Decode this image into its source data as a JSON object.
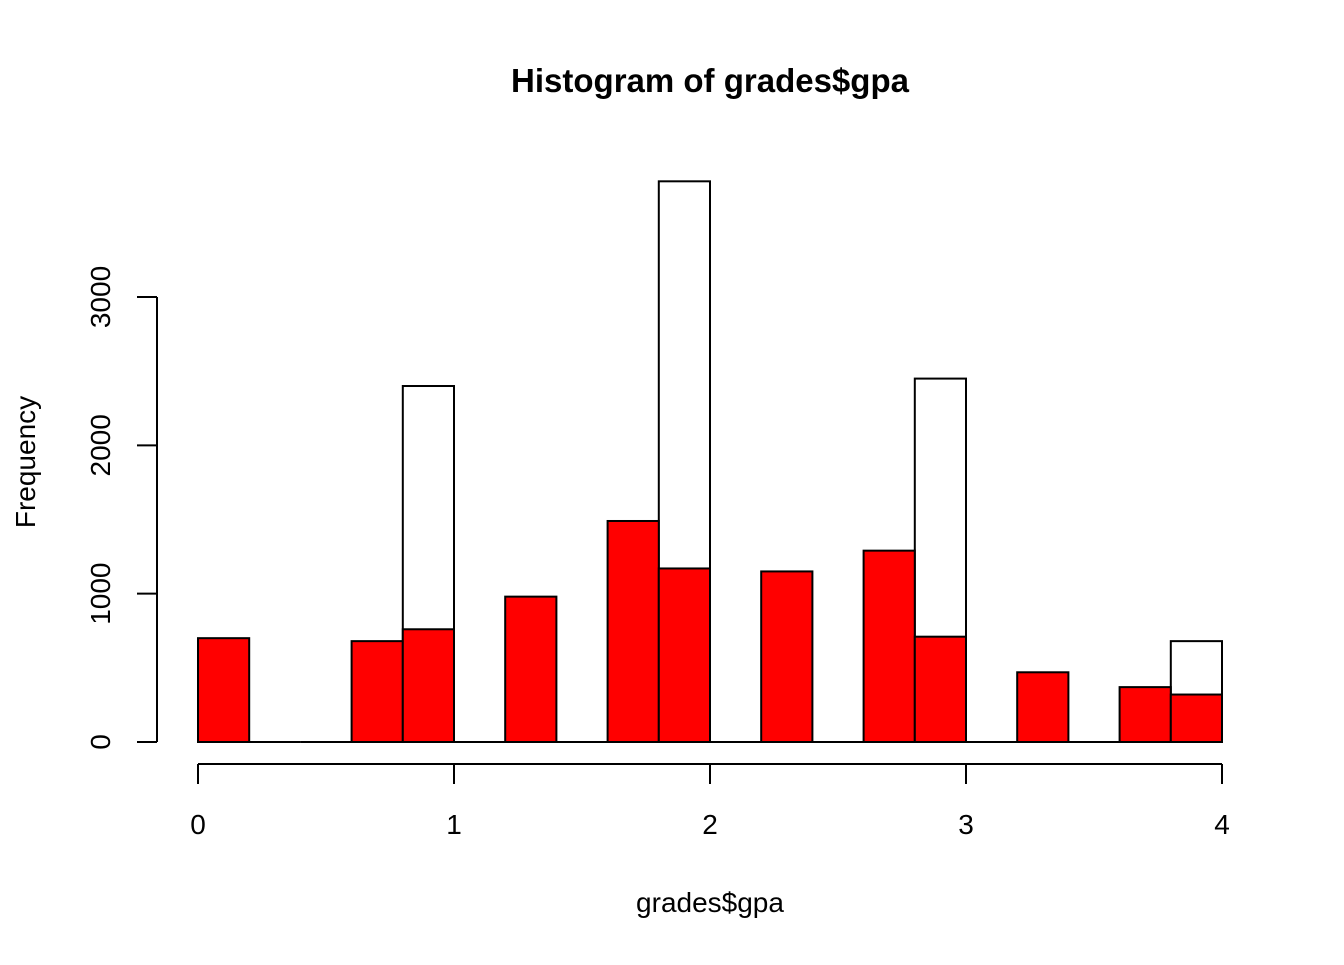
{
  "chart_data": {
    "type": "bar",
    "title": "Histogram of grades$gpa",
    "xlabel": "grades$gpa",
    "ylabel": "Frequency",
    "xlim": [
      0,
      4
    ],
    "ylim": [
      0,
      3800
    ],
    "x_ticks": [
      "0",
      "1",
      "2",
      "3",
      "4"
    ],
    "x_tick_values": [
      0,
      1,
      2,
      3,
      4
    ],
    "y_ticks": [
      "0",
      "1000",
      "2000",
      "3000"
    ],
    "y_tick_values": [
      0,
      1000,
      2000,
      3000
    ],
    "grid": false,
    "legend": "none",
    "bin_width": 0.2,
    "bin_starts": [
      0,
      0.2,
      0.4,
      0.6,
      0.8,
      1.0,
      1.2,
      1.4,
      1.6,
      1.8,
      2.0,
      2.2,
      2.4,
      2.6,
      2.8,
      3.0,
      3.2,
      3.4,
      3.6,
      3.8
    ],
    "series": [
      {
        "fill": "#ffffff",
        "values": [
          0,
          0,
          0,
          0,
          2400,
          0,
          0,
          0,
          0,
          3780,
          0,
          0,
          0,
          0,
          2450,
          0,
          0,
          0,
          0,
          680
        ]
      },
      {
        "fill": "#ff0000",
        "values": [
          700,
          0,
          0,
          680,
          760,
          0,
          980,
          0,
          1490,
          1170,
          0,
          1150,
          0,
          1290,
          710,
          0,
          470,
          0,
          370,
          320
        ]
      }
    ]
  },
  "colors": {
    "bar_stroke": "#000000",
    "axis": "#000000",
    "background": "#ffffff"
  }
}
